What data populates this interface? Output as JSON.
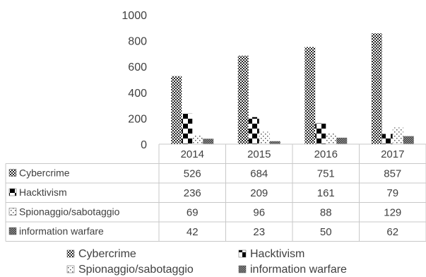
{
  "chart_data": {
    "type": "bar",
    "title": "",
    "xlabel": "",
    "ylabel": "",
    "ylim": [
      0,
      1000
    ],
    "yticks": [
      0,
      200,
      400,
      600,
      800,
      1000
    ],
    "gridlines": false,
    "data_table": true,
    "legend_position": "bottom",
    "categories": [
      "2014",
      "2015",
      "2016",
      "2017"
    ],
    "series": [
      {
        "name": "Cybercrime",
        "values": [
          526,
          684,
          751,
          857
        ],
        "pattern": "dense-checker"
      },
      {
        "name": "Hacktivism",
        "values": [
          236,
          209,
          161,
          79
        ],
        "pattern": "large-checker"
      },
      {
        "name": "Spionaggio/sabotaggio",
        "values": [
          69,
          96,
          88,
          129
        ],
        "pattern": "sparse-dots"
      },
      {
        "name": "information warfare",
        "values": [
          42,
          23,
          50,
          62
        ],
        "pattern": "medium-checker"
      }
    ]
  }
}
